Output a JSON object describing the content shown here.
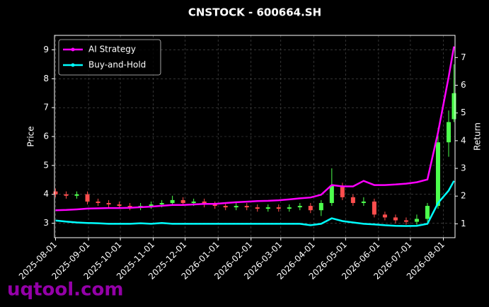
{
  "chart_data": {
    "type": "candlestick",
    "title": "CNSTOCK - 600664.SH",
    "ylabel": "Price",
    "y2label": "Return",
    "watermark": "uqtool.com",
    "x": [
      "2025-08-01",
      "2025-08-11",
      "2025-08-21",
      "2025-08-31",
      "2025-09-10",
      "2025-09-20",
      "2025-09-30",
      "2025-10-10",
      "2025-10-20",
      "2025-10-30",
      "2025-11-09",
      "2025-11-19",
      "2025-11-29",
      "2025-12-09",
      "2025-12-19",
      "2025-12-29",
      "2026-01-08",
      "2026-01-18",
      "2026-01-28",
      "2026-02-07",
      "2026-02-17",
      "2026-02-27",
      "2026-03-09",
      "2026-03-19",
      "2026-03-29",
      "2026-04-08",
      "2026-04-18",
      "2026-04-28",
      "2026-05-08",
      "2026-05-18",
      "2026-05-28",
      "2026-06-07",
      "2026-06-17",
      "2026-06-27",
      "2026-07-07",
      "2026-07-17",
      "2026-07-27",
      "2026-08-06",
      "2026-08-11"
    ],
    "open": [
      4.1,
      4.0,
      3.95,
      4.0,
      3.75,
      3.7,
      3.65,
      3.6,
      3.55,
      3.6,
      3.65,
      3.7,
      3.8,
      3.7,
      3.75,
      3.65,
      3.6,
      3.55,
      3.6,
      3.55,
      3.5,
      3.55,
      3.5,
      3.55,
      3.6,
      3.45,
      3.7,
      4.3,
      3.9,
      3.7,
      3.75,
      3.3,
      3.2,
      3.1,
      3.05,
      3.15,
      3.6,
      5.8,
      6.6
    ],
    "high": [
      4.2,
      4.1,
      4.1,
      4.1,
      3.85,
      3.8,
      3.75,
      3.7,
      3.7,
      3.75,
      3.8,
      3.95,
      3.9,
      3.85,
      3.85,
      3.75,
      3.7,
      3.7,
      3.7,
      3.65,
      3.65,
      3.65,
      3.65,
      3.7,
      3.7,
      3.8,
      4.9,
      4.4,
      4.0,
      3.9,
      3.85,
      3.4,
      3.3,
      3.2,
      3.3,
      3.7,
      6.3,
      6.9,
      8.5
    ],
    "low": [
      3.9,
      3.85,
      3.85,
      3.65,
      3.6,
      3.55,
      3.5,
      3.45,
      3.45,
      3.5,
      3.55,
      3.6,
      3.6,
      3.6,
      3.55,
      3.5,
      3.45,
      3.45,
      3.45,
      3.4,
      3.4,
      3.4,
      3.4,
      3.45,
      3.35,
      3.25,
      3.6,
      3.8,
      3.6,
      3.6,
      3.2,
      3.1,
      3.0,
      2.95,
      2.95,
      3.05,
      3.5,
      5.3,
      6.5
    ],
    "close": [
      4.0,
      3.95,
      4.0,
      3.75,
      3.7,
      3.65,
      3.6,
      3.55,
      3.6,
      3.65,
      3.7,
      3.8,
      3.7,
      3.75,
      3.65,
      3.6,
      3.55,
      3.6,
      3.55,
      3.5,
      3.55,
      3.5,
      3.55,
      3.6,
      3.45,
      3.7,
      4.3,
      3.9,
      3.7,
      3.75,
      3.3,
      3.2,
      3.1,
      3.05,
      3.15,
      3.6,
      5.8,
      6.5,
      7.5
    ],
    "up_color": "#4dff4d",
    "down_color": "#ff4d4d",
    "series": [
      {
        "name": "AI Strategy",
        "color": "#ff00ff",
        "axis": "y2",
        "values": [
          1.49,
          1.5,
          1.52,
          1.55,
          1.56,
          1.57,
          1.57,
          1.58,
          1.6,
          1.62,
          1.65,
          1.68,
          1.68,
          1.7,
          1.72,
          1.72,
          1.75,
          1.78,
          1.8,
          1.82,
          1.83,
          1.85,
          1.88,
          1.92,
          1.95,
          2.05,
          2.4,
          2.35,
          2.35,
          2.55,
          2.4,
          2.4,
          2.42,
          2.45,
          2.5,
          2.6,
          4.3,
          6.3,
          7.4
        ]
      },
      {
        "name": "Buy-and-Hold",
        "color": "#00ffff",
        "axis": "y2",
        "values": [
          1.12,
          1.08,
          1.05,
          1.03,
          1.02,
          1.0,
          1.0,
          1.0,
          1.02,
          1.0,
          1.03,
          1.0,
          1.0,
          1.0,
          1.0,
          1.0,
          1.0,
          1.0,
          1.0,
          1.0,
          1.0,
          1.0,
          1.0,
          1.0,
          0.95,
          1.0,
          1.2,
          1.1,
          1.05,
          1.0,
          0.98,
          0.95,
          0.93,
          0.92,
          0.93,
          1.0,
          1.75,
          2.2,
          2.55
        ]
      }
    ],
    "xlim": [
      "2025-07-31",
      "2026-08-12"
    ],
    "xticks": [
      "2025-08-01",
      "2025-09-01",
      "2025-10-01",
      "2025-11-01",
      "2025-12-01",
      "2026-01-01",
      "2026-02-01",
      "2026-03-01",
      "2026-04-01",
      "2026-05-01",
      "2026-06-01",
      "2026-07-01",
      "2026-08-01"
    ],
    "ylim": [
      2.5,
      9.5
    ],
    "yticks": [
      3,
      4,
      5,
      6,
      7,
      8,
      9
    ],
    "y2lim": [
      0.5,
      7.8
    ],
    "y2ticks": [
      1,
      2,
      3,
      4,
      5,
      6,
      7
    ],
    "grid": true,
    "legend": "upper left"
  }
}
